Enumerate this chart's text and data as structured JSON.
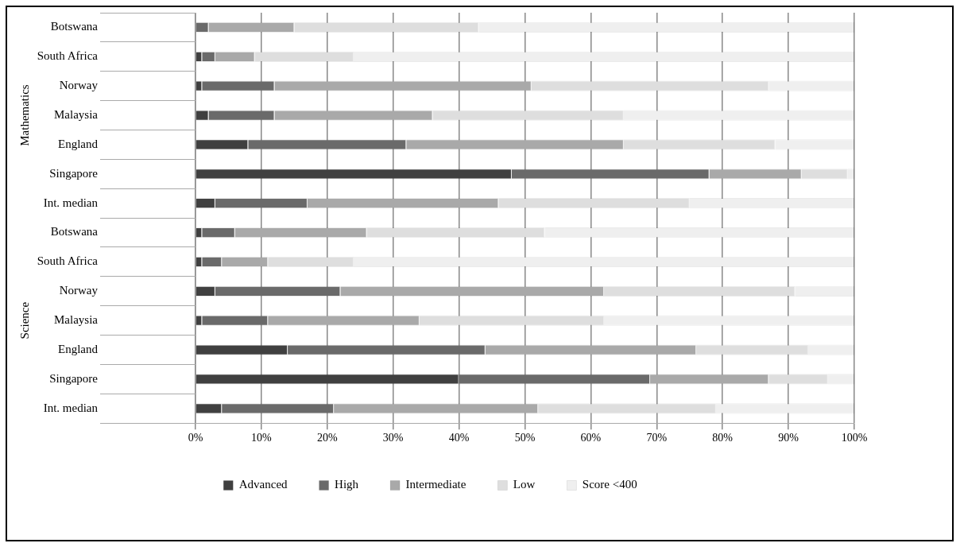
{
  "chart_data": {
    "type": "bar",
    "orientation": "horizontal",
    "stacked": true,
    "categories": [
      "Botswana",
      "South Africa",
      "Norway",
      "Malaysia",
      "England",
      "Singapore",
      "Int. median",
      "Botswana",
      "South Africa",
      "Norway",
      "Malaysia",
      "England",
      "Singapore",
      "Int. median"
    ],
    "series": [
      {
        "name": "Advanced",
        "color": "#404040",
        "values": [
          0,
          1,
          1,
          2,
          8,
          48,
          3,
          1,
          1,
          3,
          1,
          14,
          40,
          4
        ]
      },
      {
        "name": "High",
        "color": "#6a6a6a",
        "values": [
          2,
          2,
          11,
          10,
          24,
          30,
          14,
          5,
          3,
          19,
          10,
          30,
          29,
          17
        ]
      },
      {
        "name": "Intermediate",
        "color": "#a9a9a9",
        "values": [
          13,
          6,
          39,
          24,
          33,
          14,
          29,
          20,
          7,
          40,
          23,
          32,
          18,
          31
        ]
      },
      {
        "name": "Low",
        "color": "#dedede",
        "values": [
          28,
          15,
          36,
          29,
          23,
          7,
          29,
          27,
          13,
          29,
          28,
          17,
          9,
          27
        ]
      },
      {
        "name": "Score <400",
        "color": "#efefef",
        "values": [
          57,
          76,
          13,
          35,
          12,
          1,
          25,
          47,
          76,
          9,
          38,
          7,
          4,
          21
        ]
      }
    ],
    "xlim": [
      0,
      100
    ],
    "xticks": [
      {
        "value": 0,
        "label": "0%"
      },
      {
        "value": 10,
        "label": "10%"
      },
      {
        "value": 20,
        "label": "20%"
      },
      {
        "value": 30,
        "label": "30%"
      },
      {
        "value": 40,
        "label": "40%"
      },
      {
        "value": 50,
        "label": "50%"
      },
      {
        "value": 60,
        "label": "60%"
      },
      {
        "value": 70,
        "label": "70%"
      },
      {
        "value": 80,
        "label": "80%"
      },
      {
        "value": 90,
        "label": "90%"
      },
      {
        "value": 100,
        "label": "100%"
      }
    ],
    "annotations": [
      "Mathematics",
      "Science"
    ],
    "grid": "x",
    "legend": "bottom"
  }
}
